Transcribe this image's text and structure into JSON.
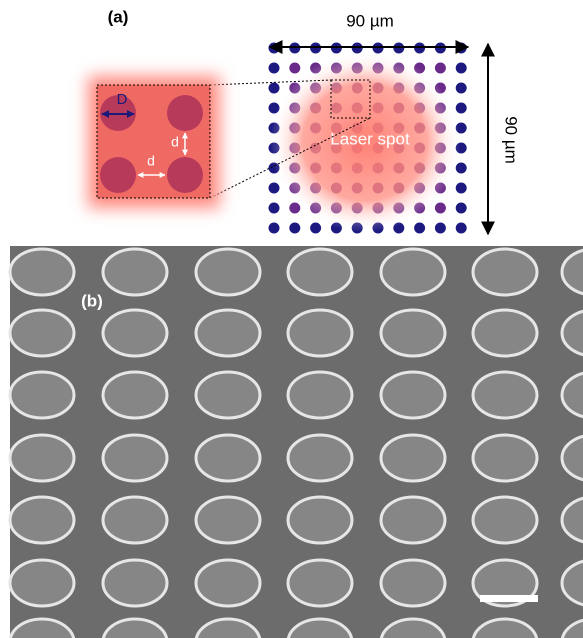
{
  "panel_a": {
    "label": "(a)",
    "width_label": "90 µm",
    "height_label": "90 µm",
    "spot_label": "Laser spot",
    "diameter_label": "D",
    "gap_labels": [
      "d",
      "d"
    ]
  },
  "panel_b": {
    "label": "(b)"
  }
}
